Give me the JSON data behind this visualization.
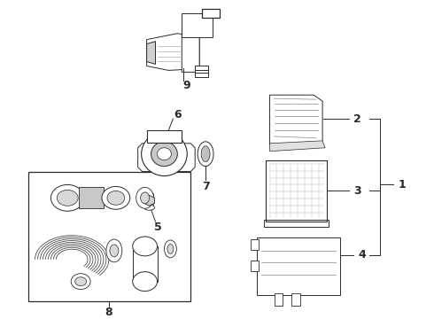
{
  "background": "#ffffff",
  "line_color": "#2a2a2a",
  "fig_width": 4.9,
  "fig_height": 3.6,
  "dpi": 100
}
